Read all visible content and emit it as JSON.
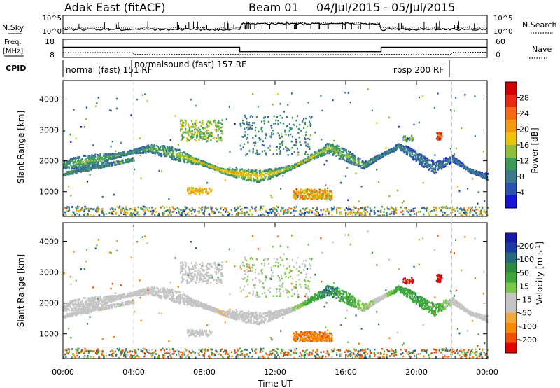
{
  "header": {
    "station": "Adak East (fitACF)",
    "beam": "Beam 01",
    "date_range": "04/Jul/2015 - 05/Jul/2015"
  },
  "top_panels": {
    "nsky_label": "N.Sky",
    "nsky_ticks": [
      "10^5",
      "10^0"
    ],
    "nsearch_label": "N.Search",
    "nsearch_ticks": [
      "10^5",
      "10^0"
    ],
    "freq_label_1": "Freq.",
    "freq_label_2": "[MHz]",
    "freq_ticks": [
      "18",
      "8"
    ],
    "freq_ylim": [
      8,
      18
    ],
    "nave_label": "Nave",
    "nave_ticks": [
      "60",
      "0"
    ],
    "nave_ylim": [
      0,
      60
    ],
    "cpid_label": "CPID",
    "freq_series": {
      "x": [
        0,
        10,
        10,
        18,
        18,
        24
      ],
      "y": [
        13.6,
        13.6,
        11.2,
        11.2,
        13.6,
        13.6
      ]
    },
    "nave_series": {
      "x": [
        0,
        4,
        4,
        10,
        10,
        18,
        18,
        22,
        22,
        24
      ],
      "y": [
        16,
        16,
        10,
        10,
        9,
        9,
        10,
        10,
        17,
        17
      ]
    },
    "cpid_segments": [
      {
        "label": "normal (fast) 151 RF",
        "start": 0,
        "end": 4
      },
      {
        "label": "normalsound (fast) 157 RF",
        "start": 4,
        "end": 22
      },
      {
        "label": "rbsp 200 RF",
        "start": 18,
        "end": 24
      }
    ]
  },
  "colors": {
    "power": [
      "#1515d8",
      "#2c52b0",
      "#3a7a8a",
      "#3c9a5a",
      "#8fbf3a",
      "#f2c20b",
      "#f39a12",
      "#f56a10",
      "#e82810",
      "#d40000"
    ],
    "velocity": [
      "#e00000",
      "#f24f00",
      "#f58a00",
      "#f2a83a",
      "#c4c4c4",
      "#c4c4c4",
      "#7ac84a",
      "#3da83a",
      "#2e8a3e",
      "#256a7a",
      "#1d3aa0",
      "#1a1aa8"
    ],
    "boundary_line": "#c8c8c8"
  },
  "chart_data": [
    {
      "type": "heatmap",
      "name": "power",
      "ylabel": "Slant Range [km]",
      "yticks": [
        "4000",
        "3000",
        "2000",
        "1000"
      ],
      "ylim": [
        200,
        4600
      ],
      "xlim": [
        0,
        24
      ],
      "colorbar_label": "Power [dB]",
      "colorbar_ticks": [
        "28",
        "24",
        "20",
        "16",
        "12",
        "8",
        "4"
      ],
      "clim": [
        0,
        32
      ],
      "band": {
        "hours": [
          0,
          1,
          2,
          3,
          4,
          5,
          6,
          7,
          8,
          9,
          10,
          11,
          12,
          13,
          14,
          15,
          16,
          17,
          18,
          19,
          20,
          21,
          22,
          23,
          24
        ],
        "range_km": [
          1900,
          1980,
          2080,
          2200,
          2330,
          2430,
          2300,
          2120,
          1920,
          1700,
          1600,
          1520,
          1650,
          1830,
          2130,
          2450,
          2200,
          1880,
          2200,
          2500,
          2150,
          1800,
          2100,
          1700,
          1500
        ],
        "power_db": [
          12,
          14,
          13,
          13,
          12,
          13,
          14,
          17,
          19,
          21,
          20,
          19,
          18,
          17,
          18,
          16,
          14,
          13,
          10,
          10,
          9,
          9,
          8,
          9,
          8
        ]
      }
    },
    {
      "type": "heatmap",
      "name": "velocity",
      "ylabel": "Slant Range [km]",
      "yticks": [
        "4000",
        "3000",
        "2000",
        "1000"
      ],
      "ylim": [
        200,
        4600
      ],
      "xlim": [
        0,
        24
      ],
      "colorbar_label": "Velocity [m s",
      "colorbar_label_sup": "-1",
      "colorbar_label_end": "]",
      "colorbar_ticks": [
        "200",
        "100",
        "50",
        "15",
        "-15",
        "-50",
        "-100",
        "-200"
      ],
      "xticks": [
        "00:00",
        "04:00",
        "08:00",
        "12:00",
        "16:00",
        "20:00",
        "00:00"
      ],
      "xlabel": "Time UT",
      "band_velocity": [
        0,
        0,
        0,
        0,
        0,
        0,
        0,
        0,
        0,
        -10,
        0,
        0,
        0,
        10,
        60,
        80,
        60,
        20,
        0,
        60,
        70,
        60,
        0,
        0,
        0
      ]
    }
  ]
}
